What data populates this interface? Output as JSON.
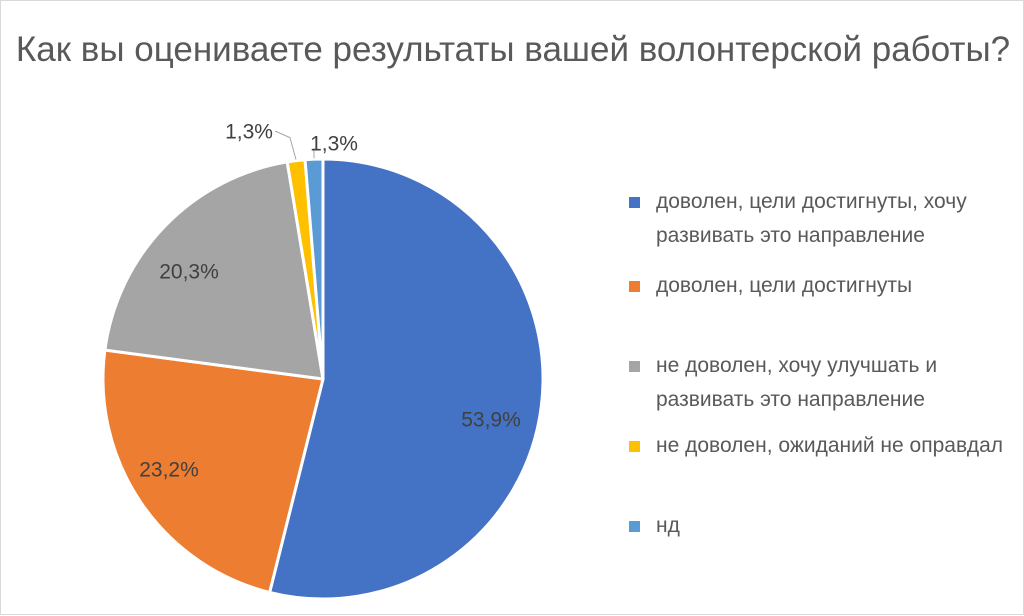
{
  "chart_data": {
    "type": "pie",
    "title": "Как вы оцениваете результаты вашей волонтерской работы?",
    "slices": [
      {
        "label": "доволен, цели достигнуты, хочу развивать это направление",
        "value": 53.9,
        "display": "53,9%",
        "color": "#4472C4"
      },
      {
        "label": "доволен, цели достигнуты",
        "value": 23.2,
        "display": "23,2%",
        "color": "#ED7D31"
      },
      {
        "label": "не доволен, хочу улучшать и развивать это направление",
        "value": 20.3,
        "display": "20,3%",
        "color": "#A5A5A5"
      },
      {
        "label": "не доволен, ожиданий не оправдал",
        "value": 1.3,
        "display": "1,3%",
        "color": "#FFC000"
      },
      {
        "label": "нд",
        "value": 1.3,
        "display": "1,3%",
        "color": "#5B9BD5"
      }
    ],
    "legend_position": "right"
  }
}
